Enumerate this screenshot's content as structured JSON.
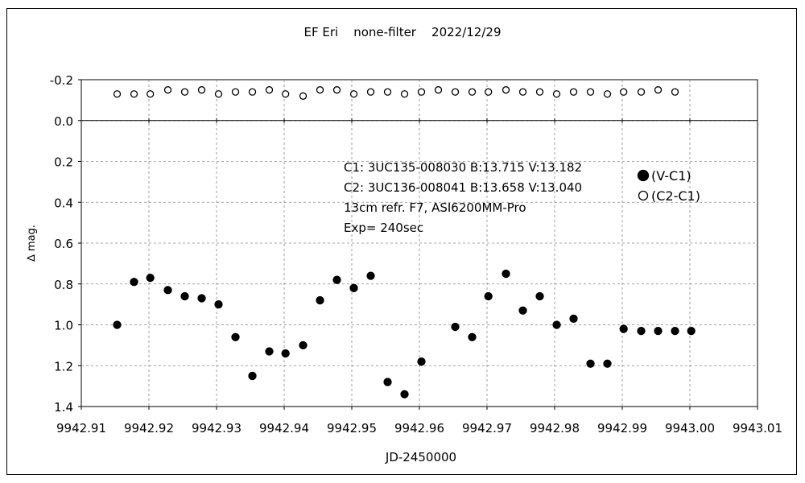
{
  "chart_data": {
    "type": "scatter",
    "title": "EF Eri    none-filter    2022/12/29",
    "xlabel": "JD-2450000",
    "ylabel": "∆ mag.",
    "xlim": [
      9942.91,
      9943.01
    ],
    "ylim": [
      -0.2,
      1.4
    ],
    "y_inverted": true,
    "grid": true,
    "x_ticks": [
      9942.91,
      9942.92,
      9942.93,
      9942.94,
      9942.95,
      9942.96,
      9942.97,
      9942.98,
      9942.99,
      9943.0,
      9943.01
    ],
    "x_tick_labels": [
      "9942.91",
      "9942.92",
      "9942.93",
      "9942.94",
      "9942.95",
      "9942.96",
      "9942.97",
      "9942.98",
      "9942.99",
      "9943.00",
      "9943.01"
    ],
    "y_ticks": [
      -0.2,
      0.0,
      0.2,
      0.4,
      0.6,
      0.8,
      1.0,
      1.2,
      1.4
    ],
    "y_tick_labels": [
      "-0.2",
      "0.0",
      "0.2",
      "0.4",
      "0.6",
      "0.8",
      "1.0",
      "1.2",
      "1.4"
    ],
    "legend_position": "top-right",
    "annotation_lines": [
      "C1: 3UC135-008030  B:13.715  V:13.182",
      "C2: 3UC136-008041  B:13.658  V:13.040",
      "13cm refr. F7,  ASI6200MM-Pro",
      "Exp= 240sec"
    ],
    "series": [
      {
        "name": "(V-C1)",
        "marker": "filled-circle",
        "color": "#000000",
        "x": [
          9942.9153,
          9942.9178,
          9942.9202,
          9942.9228,
          9942.9253,
          9942.9278,
          9942.9303,
          9942.9328,
          9942.9353,
          9942.9378,
          9942.9402,
          9942.9428,
          9942.9453,
          9942.9478,
          9942.9503,
          9942.9528,
          9942.9553,
          9942.9578,
          9942.9603,
          9942.9653,
          9942.9678,
          9942.9702,
          9942.9728,
          9942.9753,
          9942.9778,
          9942.9803,
          9942.9828,
          9942.9853,
          9942.9878,
          9942.9902,
          9942.9928,
          9942.9953,
          9942.9978,
          9943.0002
        ],
        "y": [
          1.0,
          0.79,
          0.77,
          0.83,
          0.86,
          0.87,
          0.9,
          1.06,
          1.25,
          1.13,
          1.14,
          1.1,
          0.88,
          0.78,
          0.82,
          0.76,
          1.28,
          1.34,
          1.18,
          1.01,
          1.06,
          0.86,
          0.75,
          0.93,
          0.86,
          1.0,
          0.97,
          1.19,
          1.19,
          1.02,
          1.03,
          1.03,
          1.03,
          1.03
        ]
      },
      {
        "name": "(C2-C1)",
        "marker": "open-circle",
        "color": "#000000",
        "x": [
          9942.9153,
          9942.9178,
          9942.9202,
          9942.9228,
          9942.9253,
          9942.9278,
          9942.9303,
          9942.9328,
          9942.9353,
          9942.9378,
          9942.9402,
          9942.9428,
          9942.9453,
          9942.9478,
          9942.9503,
          9942.9528,
          9942.9553,
          9942.9578,
          9942.9603,
          9942.9628,
          9942.9653,
          9942.9678,
          9942.9702,
          9942.9728,
          9942.9753,
          9942.9778,
          9942.9803,
          9942.9828,
          9942.9853,
          9942.9878,
          9942.9902,
          9942.9928,
          9942.9953,
          9942.9978
        ],
        "y": [
          -0.13,
          -0.13,
          -0.13,
          -0.15,
          -0.14,
          -0.15,
          -0.13,
          -0.14,
          -0.14,
          -0.15,
          -0.13,
          -0.12,
          -0.15,
          -0.15,
          -0.13,
          -0.14,
          -0.14,
          -0.13,
          -0.14,
          -0.15,
          -0.14,
          -0.14,
          -0.14,
          -0.15,
          -0.14,
          -0.14,
          -0.13,
          -0.14,
          -0.14,
          -0.13,
          -0.14,
          -0.14,
          -0.15,
          -0.14
        ]
      }
    ]
  }
}
